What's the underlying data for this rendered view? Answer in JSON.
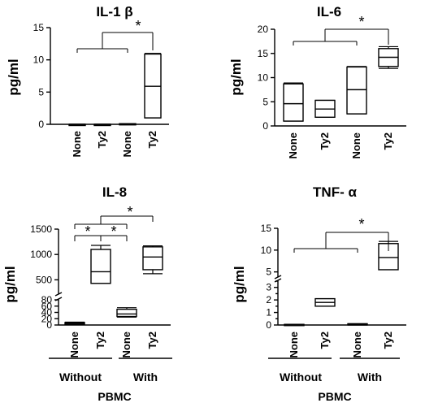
{
  "chart_data": [
    {
      "type": "box",
      "title": "IL-1 β",
      "ylabel": "pg/ml",
      "ylim": [
        0,
        15
      ],
      "yticks": [
        "0",
        "5",
        "10",
        "15"
      ],
      "categories": [
        "None",
        "Ty2",
        "None",
        "Ty2"
      ],
      "boxes": [
        {
          "min": 0,
          "q1": 0,
          "median": 0,
          "q3": 0,
          "max": 0
        },
        {
          "min": 0,
          "q1": 0,
          "median": 0,
          "q3": 0,
          "max": 0
        },
        {
          "min": 0,
          "q1": 0,
          "median": 0.05,
          "q3": 0.1,
          "max": 0.1
        },
        {
          "min": 1,
          "q1": 1,
          "median": 5.9,
          "q3": 10.9,
          "max": 11
        }
      ],
      "significance": [
        {
          "label": "*",
          "left": [
            0,
            2
          ],
          "right": [
            3
          ]
        }
      ]
    },
    {
      "type": "box",
      "title": "IL-6",
      "ylabel": "pg/ml",
      "ylim": [
        0,
        20
      ],
      "yticks": [
        "0",
        "5",
        "10",
        "15",
        "20"
      ],
      "categories": [
        "None",
        "Ty2",
        "None",
        "Ty2"
      ],
      "boxes": [
        {
          "min": 1,
          "q1": 1,
          "median": 4.6,
          "q3": 8.7,
          "max": 8.9
        },
        {
          "min": 1.8,
          "q1": 1.8,
          "median": 3.5,
          "q3": 5.3,
          "max": 5.3
        },
        {
          "min": 2.5,
          "q1": 2.5,
          "median": 7.5,
          "q3": 12.2,
          "max": 12.3
        },
        {
          "min": 11.9,
          "q1": 12.3,
          "median": 14.2,
          "q3": 16,
          "max": 16.4
        }
      ],
      "significance": [
        {
          "label": "*",
          "left": [
            0,
            2
          ],
          "right": [
            3
          ]
        }
      ]
    },
    {
      "type": "box",
      "title": "IL-8",
      "ylabel": "pg/ml",
      "broken_axis": true,
      "lower_ylim": [
        0,
        80
      ],
      "upper_ylim": [
        250,
        1500
      ],
      "yticks": [
        "0",
        "20",
        "40",
        "60",
        "80",
        "500",
        "1000",
        "1500"
      ],
      "categories": [
        "None",
        "Ty2",
        "None",
        "Ty2"
      ],
      "boxes": [
        {
          "min": 2,
          "q1": 3,
          "median": 6,
          "q3": 8,
          "max": 9
        },
        {
          "min": 430,
          "q1": 430,
          "median": 660,
          "q3": 1100,
          "max": 1180
        },
        {
          "min": 25,
          "q1": 27,
          "median": 35,
          "q3": 50,
          "max": 55
        },
        {
          "min": 620,
          "q1": 700,
          "median": 950,
          "q3": 1150,
          "max": 1170
        }
      ],
      "significance": [
        {
          "label": "*",
          "left": [
            0
          ],
          "right": [
            1
          ]
        },
        {
          "label": "*",
          "left": [
            1
          ],
          "right": [
            2
          ]
        },
        {
          "label": "*",
          "left": [
            0
          ],
          "right": [
            2
          ]
        },
        {
          "label": "*",
          "left": [
            1
          ],
          "right": [
            3
          ]
        }
      ],
      "group_labels": [
        "Without",
        "With"
      ],
      "group_title": "PBMC"
    },
    {
      "type": "box",
      "title": "TNF- α",
      "ylabel": "pg/ml",
      "broken_axis": true,
      "lower_ylim": [
        0,
        3.5
      ],
      "upper_ylim": [
        4,
        15
      ],
      "yticks": [
        "0",
        "0.5",
        "1",
        "1.5",
        "2",
        "2.5",
        "3",
        "3.5",
        "5",
        "10",
        "15"
      ],
      "categories": [
        "None",
        "Ty2",
        "None",
        "Ty2"
      ],
      "boxes": [
        {
          "min": 0,
          "q1": 0,
          "median": 0.03,
          "q3": 0.05,
          "max": 0.05
        },
        {
          "min": 1.5,
          "q1": 1.5,
          "median": 1.8,
          "q3": 2.1,
          "max": 2.1
        },
        {
          "min": 0,
          "q1": 0.05,
          "median": 0.08,
          "q3": 0.1,
          "max": 0.1
        },
        {
          "min": 5.5,
          "q1": 5.5,
          "median": 8.3,
          "q3": 11.5,
          "max": 12
        }
      ],
      "significance": [
        {
          "label": "*",
          "left": [
            0,
            2
          ],
          "right": [
            3
          ]
        }
      ],
      "group_labels": [
        "Without",
        "With"
      ],
      "group_title": "PBMC"
    }
  ]
}
